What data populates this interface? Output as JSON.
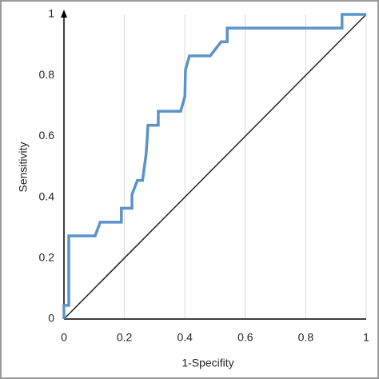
{
  "chart_data": {
    "type": "line",
    "xlabel": "1-Specifity",
    "ylabel": "Sensitivity",
    "x": [
      0,
      0,
      0.016,
      0.016,
      0.103,
      0.12,
      0.19,
      0.19,
      0.225,
      0.225,
      0.243,
      0.26,
      0.272,
      0.278,
      0.312,
      0.312,
      0.386,
      0.4,
      0.402,
      0.415,
      0.484,
      0.52,
      0.54,
      0.54,
      0.92,
      0.92,
      1
    ],
    "series": [
      {
        "color": "#5b93c9",
        "values": [
          0,
          0.045,
          0.045,
          0.273,
          0.273,
          0.318,
          0.318,
          0.364,
          0.364,
          0.409,
          0.455,
          0.455,
          0.543,
          0.636,
          0.636,
          0.682,
          0.682,
          0.73,
          0.818,
          0.864,
          0.864,
          0.91,
          0.91,
          0.955,
          0.955,
          1,
          1
        ]
      }
    ],
    "xlim": [
      0,
      1
    ],
    "ylim": [
      0,
      1
    ],
    "xticks": [
      0,
      0.2,
      0.4,
      0.6,
      0.8,
      1
    ],
    "yticks": [
      0,
      0.2,
      0.4,
      0.6,
      0.8,
      1
    ],
    "grid": "x",
    "diagonal_color": "#222222"
  }
}
